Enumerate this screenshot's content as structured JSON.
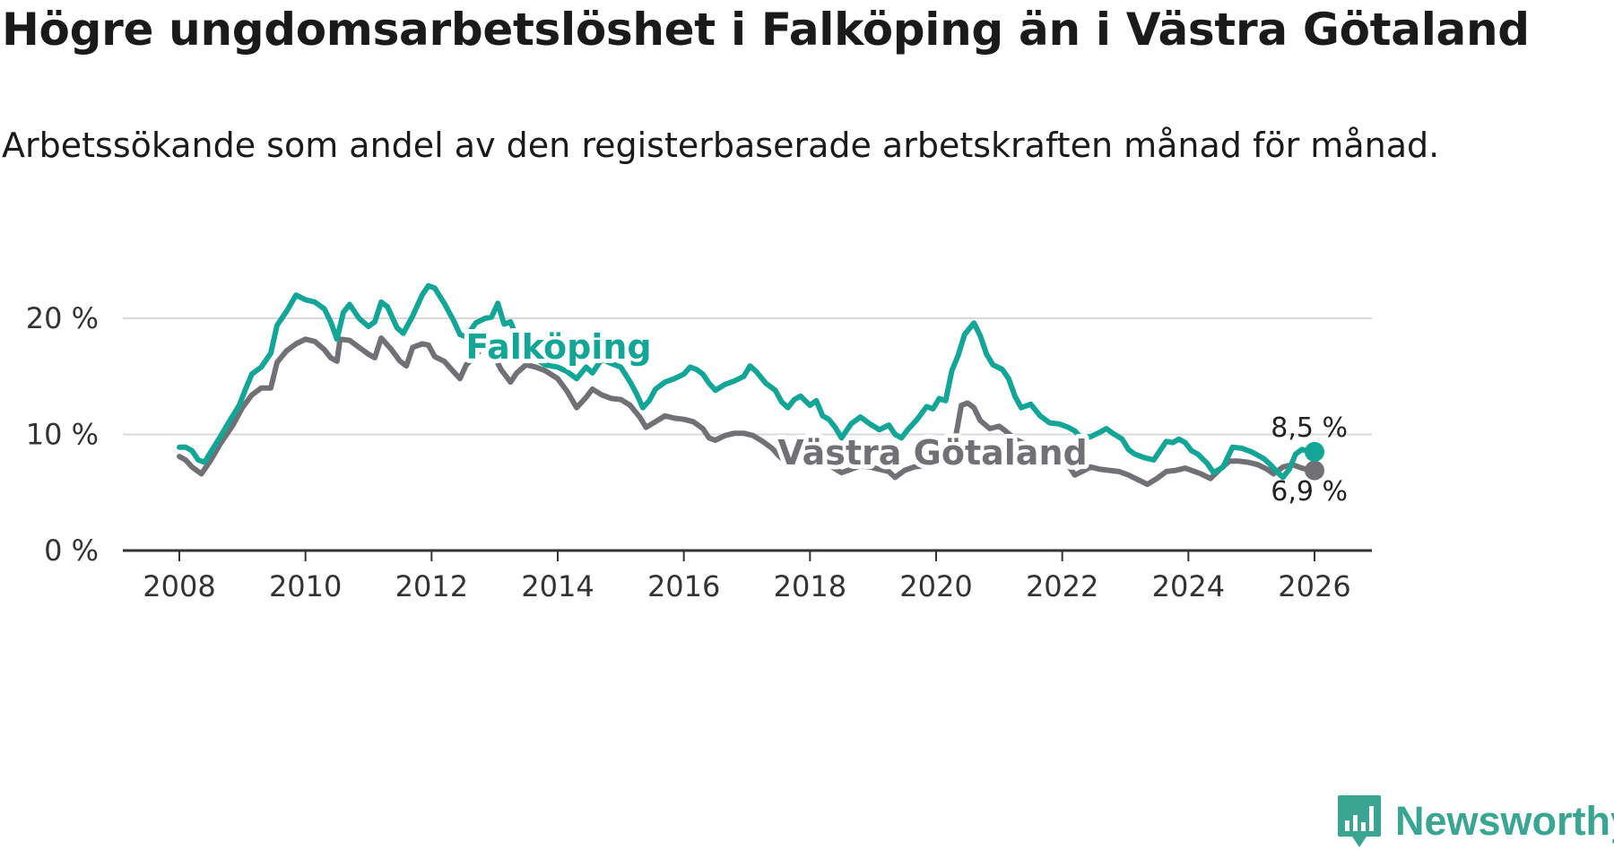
{
  "title": "Högre ungdomsarbetslöshet i Falköping än i Västra Götaland",
  "subtitle": "Arbetssökande som andel av den registerbaserade arbetskraften månad för månad.",
  "brand": {
    "name": "Newsworthy",
    "color": "#3aa692"
  },
  "chart_data": {
    "type": "line",
    "xlim": [
      2007.2,
      2026.9
    ],
    "ylim": [
      0,
      20
    ],
    "y_ticks": [
      {
        "value": 0,
        "label": "0 %"
      },
      {
        "value": 10,
        "label": "10 %"
      },
      {
        "value": 20,
        "label": "20 %"
      }
    ],
    "x_ticks": [
      {
        "value": 2008,
        "label": "2008"
      },
      {
        "value": 2010,
        "label": "2010"
      },
      {
        "value": 2012,
        "label": "2012"
      },
      {
        "value": 2014,
        "label": "2014"
      },
      {
        "value": 2016,
        "label": "2016"
      },
      {
        "value": 2018,
        "label": "2018"
      },
      {
        "value": 2020,
        "label": "2020"
      },
      {
        "value": 2022,
        "label": "2022"
      },
      {
        "value": 2024,
        "label": "2024"
      },
      {
        "value": 2026,
        "label": "2026"
      }
    ],
    "grid": true,
    "series": [
      {
        "name": "Västra Götaland",
        "color": "#707075",
        "end_label": "6,9 %",
        "points": [
          [
            2008.0,
            8.1
          ],
          [
            2008.1,
            7.8
          ],
          [
            2008.2,
            7.2
          ],
          [
            2008.35,
            6.6
          ],
          [
            2008.5,
            7.8
          ],
          [
            2008.65,
            9.2
          ],
          [
            2008.85,
            10.8
          ],
          [
            2009.0,
            12.3
          ],
          [
            2009.15,
            13.4
          ],
          [
            2009.3,
            14.0
          ],
          [
            2009.45,
            14.0
          ],
          [
            2009.55,
            16.2
          ],
          [
            2009.7,
            17.2
          ],
          [
            2009.85,
            17.8
          ],
          [
            2010.0,
            18.2
          ],
          [
            2010.15,
            18.0
          ],
          [
            2010.3,
            17.3
          ],
          [
            2010.4,
            16.6
          ],
          [
            2010.5,
            16.3
          ],
          [
            2010.55,
            18.2
          ],
          [
            2010.7,
            18.1
          ],
          [
            2010.85,
            17.5
          ],
          [
            2011.0,
            16.9
          ],
          [
            2011.1,
            16.6
          ],
          [
            2011.2,
            18.3
          ],
          [
            2011.35,
            17.4
          ],
          [
            2011.5,
            16.3
          ],
          [
            2011.6,
            15.9
          ],
          [
            2011.7,
            17.5
          ],
          [
            2011.85,
            17.8
          ],
          [
            2011.95,
            17.7
          ],
          [
            2012.05,
            16.7
          ],
          [
            2012.2,
            16.3
          ],
          [
            2012.35,
            15.4
          ],
          [
            2012.45,
            14.8
          ],
          [
            2012.55,
            16.0
          ],
          [
            2012.7,
            16.8
          ],
          [
            2012.8,
            17.5
          ],
          [
            2012.95,
            17.2
          ],
          [
            2013.1,
            15.6
          ],
          [
            2013.25,
            14.5
          ],
          [
            2013.35,
            15.3
          ],
          [
            2013.5,
            16.0
          ],
          [
            2013.65,
            15.8
          ],
          [
            2013.8,
            15.5
          ],
          [
            2014.0,
            14.8
          ],
          [
            2014.15,
            13.7
          ],
          [
            2014.3,
            12.3
          ],
          [
            2014.45,
            13.2
          ],
          [
            2014.55,
            13.9
          ],
          [
            2014.7,
            13.4
          ],
          [
            2014.85,
            13.1
          ],
          [
            2015.0,
            13.0
          ],
          [
            2015.15,
            12.5
          ],
          [
            2015.3,
            11.5
          ],
          [
            2015.4,
            10.6
          ],
          [
            2015.55,
            11.1
          ],
          [
            2015.7,
            11.6
          ],
          [
            2015.85,
            11.4
          ],
          [
            2016.0,
            11.3
          ],
          [
            2016.15,
            11.1
          ],
          [
            2016.3,
            10.5
          ],
          [
            2016.4,
            9.7
          ],
          [
            2016.5,
            9.5
          ],
          [
            2016.65,
            9.9
          ],
          [
            2016.8,
            10.1
          ],
          [
            2016.95,
            10.1
          ],
          [
            2017.1,
            9.9
          ],
          [
            2017.25,
            9.4
          ],
          [
            2017.4,
            8.8
          ],
          [
            2017.5,
            8.2
          ],
          [
            2017.6,
            7.7
          ],
          [
            2017.75,
            8.0
          ],
          [
            2017.9,
            8.3
          ],
          [
            2018.05,
            8.2
          ],
          [
            2018.2,
            8.0
          ],
          [
            2018.35,
            7.2
          ],
          [
            2018.5,
            6.7
          ],
          [
            2018.65,
            7.0
          ],
          [
            2018.8,
            7.3
          ],
          [
            2018.95,
            7.2
          ],
          [
            2019.1,
            7.0
          ],
          [
            2019.25,
            6.8
          ],
          [
            2019.35,
            6.3
          ],
          [
            2019.5,
            6.9
          ],
          [
            2019.65,
            7.2
          ],
          [
            2019.8,
            7.3
          ],
          [
            2019.95,
            7.4
          ],
          [
            2020.1,
            7.6
          ],
          [
            2020.2,
            8.3
          ],
          [
            2020.3,
            9.5
          ],
          [
            2020.4,
            12.5
          ],
          [
            2020.5,
            12.7
          ],
          [
            2020.6,
            12.3
          ],
          [
            2020.7,
            11.2
          ],
          [
            2020.85,
            10.5
          ],
          [
            2021.0,
            10.7
          ],
          [
            2021.1,
            10.3
          ],
          [
            2021.25,
            9.6
          ],
          [
            2021.4,
            9.2
          ],
          [
            2021.55,
            8.8
          ],
          [
            2021.7,
            8.7
          ],
          [
            2021.85,
            8.3
          ],
          [
            2022.0,
            7.8
          ],
          [
            2022.1,
            7.3
          ],
          [
            2022.2,
            6.5
          ],
          [
            2022.35,
            6.9
          ],
          [
            2022.45,
            7.2
          ],
          [
            2022.6,
            7.0
          ],
          [
            2022.75,
            6.9
          ],
          [
            2022.9,
            6.8
          ],
          [
            2023.05,
            6.5
          ],
          [
            2023.2,
            6.1
          ],
          [
            2023.35,
            5.7
          ],
          [
            2023.5,
            6.2
          ],
          [
            2023.65,
            6.8
          ],
          [
            2023.8,
            6.9
          ],
          [
            2023.95,
            7.1
          ],
          [
            2024.1,
            6.8
          ],
          [
            2024.2,
            6.6
          ],
          [
            2024.35,
            6.2
          ],
          [
            2024.5,
            7.0
          ],
          [
            2024.65,
            7.7
          ],
          [
            2024.8,
            7.7
          ],
          [
            2024.95,
            7.6
          ],
          [
            2025.1,
            7.4
          ],
          [
            2025.25,
            7.0
          ],
          [
            2025.35,
            6.6
          ],
          [
            2025.5,
            7.2
          ],
          [
            2025.65,
            7.4
          ],
          [
            2025.8,
            7.1
          ],
          [
            2025.95,
            6.9
          ],
          [
            2026.0,
            6.9
          ]
        ]
      },
      {
        "name": "Falköping",
        "color": "#13a596",
        "end_label": "8,5 %",
        "points": [
          [
            2008.0,
            8.9
          ],
          [
            2008.1,
            8.9
          ],
          [
            2008.2,
            8.6
          ],
          [
            2008.3,
            7.8
          ],
          [
            2008.4,
            7.6
          ],
          [
            2008.5,
            8.5
          ],
          [
            2008.65,
            9.8
          ],
          [
            2008.8,
            11.2
          ],
          [
            2008.95,
            12.5
          ],
          [
            2009.05,
            13.9
          ],
          [
            2009.15,
            15.2
          ],
          [
            2009.3,
            15.8
          ],
          [
            2009.45,
            17.0
          ],
          [
            2009.55,
            19.4
          ],
          [
            2009.7,
            20.6
          ],
          [
            2009.85,
            22.0
          ],
          [
            2010.0,
            21.6
          ],
          [
            2010.15,
            21.4
          ],
          [
            2010.3,
            20.8
          ],
          [
            2010.4,
            19.7
          ],
          [
            2010.5,
            18.2
          ],
          [
            2010.6,
            20.5
          ],
          [
            2010.7,
            21.2
          ],
          [
            2010.85,
            20.0
          ],
          [
            2011.0,
            19.3
          ],
          [
            2011.1,
            19.7
          ],
          [
            2011.2,
            21.4
          ],
          [
            2011.3,
            21.0
          ],
          [
            2011.45,
            19.2
          ],
          [
            2011.55,
            18.7
          ],
          [
            2011.7,
            20.2
          ],
          [
            2011.85,
            22.0
          ],
          [
            2011.95,
            22.8
          ],
          [
            2012.05,
            22.6
          ],
          [
            2012.2,
            21.3
          ],
          [
            2012.35,
            19.8
          ],
          [
            2012.45,
            18.6
          ],
          [
            2012.55,
            18.4
          ],
          [
            2012.7,
            19.6
          ],
          [
            2012.85,
            20.0
          ],
          [
            2012.95,
            20.1
          ],
          [
            2013.05,
            21.3
          ],
          [
            2013.15,
            19.5
          ],
          [
            2013.25,
            19.7
          ],
          [
            2013.35,
            18.4
          ],
          [
            2013.5,
            17.2
          ],
          [
            2013.65,
            16.5
          ],
          [
            2013.8,
            16.0
          ],
          [
            2014.0,
            15.8
          ],
          [
            2014.15,
            15.4
          ],
          [
            2014.3,
            14.8
          ],
          [
            2014.45,
            15.8
          ],
          [
            2014.55,
            15.3
          ],
          [
            2014.7,
            16.5
          ],
          [
            2014.85,
            16.1
          ],
          [
            2015.0,
            15.8
          ],
          [
            2015.15,
            14.5
          ],
          [
            2015.25,
            13.5
          ],
          [
            2015.35,
            12.3
          ],
          [
            2015.45,
            12.9
          ],
          [
            2015.55,
            13.9
          ],
          [
            2015.7,
            14.5
          ],
          [
            2015.85,
            14.8
          ],
          [
            2016.0,
            15.2
          ],
          [
            2016.1,
            15.8
          ],
          [
            2016.2,
            15.6
          ],
          [
            2016.3,
            15.2
          ],
          [
            2016.4,
            14.4
          ],
          [
            2016.5,
            13.8
          ],
          [
            2016.65,
            14.3
          ],
          [
            2016.8,
            14.6
          ],
          [
            2016.95,
            15.0
          ],
          [
            2017.05,
            15.9
          ],
          [
            2017.15,
            15.4
          ],
          [
            2017.3,
            14.4
          ],
          [
            2017.45,
            13.8
          ],
          [
            2017.55,
            12.8
          ],
          [
            2017.65,
            12.3
          ],
          [
            2017.75,
            13.0
          ],
          [
            2017.85,
            13.3
          ],
          [
            2018.0,
            12.5
          ],
          [
            2018.1,
            12.9
          ],
          [
            2018.2,
            11.6
          ],
          [
            2018.3,
            11.3
          ],
          [
            2018.4,
            10.6
          ],
          [
            2018.5,
            9.7
          ],
          [
            2018.65,
            10.9
          ],
          [
            2018.8,
            11.5
          ],
          [
            2018.95,
            10.9
          ],
          [
            2019.1,
            10.4
          ],
          [
            2019.25,
            10.8
          ],
          [
            2019.35,
            10.0
          ],
          [
            2019.45,
            9.7
          ],
          [
            2019.55,
            10.4
          ],
          [
            2019.7,
            11.3
          ],
          [
            2019.85,
            12.4
          ],
          [
            2019.95,
            12.2
          ],
          [
            2020.05,
            13.1
          ],
          [
            2020.15,
            12.9
          ],
          [
            2020.25,
            15.5
          ],
          [
            2020.35,
            16.8
          ],
          [
            2020.45,
            18.6
          ],
          [
            2020.6,
            19.6
          ],
          [
            2020.7,
            18.5
          ],
          [
            2020.8,
            16.9
          ],
          [
            2020.9,
            16.0
          ],
          [
            2021.05,
            15.6
          ],
          [
            2021.15,
            14.8
          ],
          [
            2021.25,
            13.3
          ],
          [
            2021.35,
            12.3
          ],
          [
            2021.5,
            12.6
          ],
          [
            2021.65,
            11.6
          ],
          [
            2021.8,
            11.0
          ],
          [
            2021.95,
            10.9
          ],
          [
            2022.1,
            10.6
          ],
          [
            2022.2,
            10.3
          ],
          [
            2022.3,
            9.7
          ],
          [
            2022.45,
            9.8
          ],
          [
            2022.6,
            10.2
          ],
          [
            2022.7,
            10.5
          ],
          [
            2022.8,
            10.1
          ],
          [
            2022.95,
            9.6
          ],
          [
            2023.05,
            8.7
          ],
          [
            2023.15,
            8.3
          ],
          [
            2023.3,
            8.0
          ],
          [
            2023.45,
            7.8
          ],
          [
            2023.55,
            8.6
          ],
          [
            2023.65,
            9.4
          ],
          [
            2023.75,
            9.3
          ],
          [
            2023.85,
            9.6
          ],
          [
            2023.95,
            9.3
          ],
          [
            2024.05,
            8.6
          ],
          [
            2024.15,
            8.3
          ],
          [
            2024.3,
            7.5
          ],
          [
            2024.4,
            6.7
          ],
          [
            2024.55,
            7.2
          ],
          [
            2024.7,
            8.9
          ],
          [
            2024.85,
            8.8
          ],
          [
            2025.0,
            8.5
          ],
          [
            2025.1,
            8.2
          ],
          [
            2025.2,
            7.9
          ],
          [
            2025.3,
            7.4
          ],
          [
            2025.4,
            6.8
          ],
          [
            2025.5,
            6.3
          ],
          [
            2025.6,
            7.0
          ],
          [
            2025.7,
            8.3
          ],
          [
            2025.8,
            8.7
          ],
          [
            2025.95,
            8.5
          ],
          [
            2026.0,
            8.5
          ]
        ]
      }
    ]
  }
}
